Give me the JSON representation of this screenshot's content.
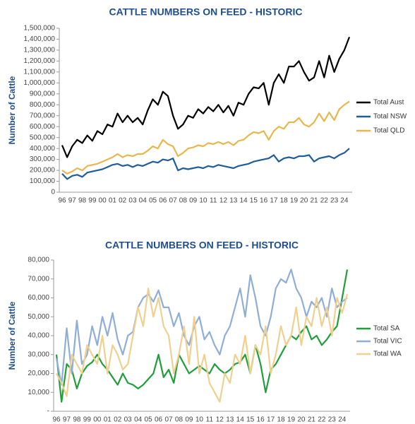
{
  "chart_data": [
    {
      "type": "line",
      "title": "CATTLE NUMBERS ON FEED - HISTORIC",
      "ylabel": "Number of Cattle",
      "categories": [
        "96",
        null,
        "97",
        null,
        "98",
        null,
        "99",
        null,
        "00",
        null,
        "01",
        null,
        "02",
        null,
        "03",
        null,
        "04",
        null,
        "05",
        null,
        "06",
        null,
        "07",
        null,
        "08",
        null,
        "09",
        null,
        "10",
        null,
        "11",
        null,
        "12",
        null,
        "13",
        null,
        "14",
        null,
        "15",
        null,
        "16",
        null,
        "17",
        null,
        "18",
        null,
        "19",
        null,
        "20",
        null,
        "21",
        null,
        "22",
        null,
        "23",
        null,
        "24",
        null
      ],
      "series": [
        {
          "name": "Total Aust",
          "color": "#000000",
          "values": [
            430000,
            320000,
            420000,
            480000,
            450000,
            520000,
            470000,
            560000,
            530000,
            620000,
            600000,
            720000,
            640000,
            700000,
            640000,
            680000,
            620000,
            750000,
            850000,
            800000,
            920000,
            880000,
            700000,
            580000,
            620000,
            700000,
            680000,
            760000,
            720000,
            780000,
            740000,
            800000,
            730000,
            790000,
            700000,
            820000,
            800000,
            900000,
            960000,
            950000,
            1000000,
            800000,
            1000000,
            1080000,
            1000000,
            1150000,
            1150000,
            1200000,
            1100000,
            1020000,
            1050000,
            1200000,
            1050000,
            1250000,
            1100000,
            1220000,
            1300000,
            1420000
          ]
        },
        {
          "name": "Total NSW",
          "color": "#1f5c99",
          "values": [
            170000,
            120000,
            150000,
            160000,
            140000,
            180000,
            190000,
            200000,
            210000,
            230000,
            250000,
            260000,
            240000,
            250000,
            230000,
            250000,
            240000,
            260000,
            280000,
            270000,
            300000,
            290000,
            310000,
            200000,
            220000,
            210000,
            220000,
            230000,
            220000,
            240000,
            230000,
            250000,
            240000,
            230000,
            220000,
            240000,
            250000,
            260000,
            280000,
            290000,
            300000,
            310000,
            340000,
            280000,
            310000,
            320000,
            310000,
            330000,
            330000,
            340000,
            280000,
            310000,
            320000,
            330000,
            310000,
            340000,
            360000,
            400000
          ]
        },
        {
          "name": "Total QLD",
          "color": "#e8b64c",
          "values": [
            200000,
            170000,
            190000,
            220000,
            200000,
            240000,
            250000,
            260000,
            280000,
            300000,
            320000,
            350000,
            320000,
            340000,
            330000,
            350000,
            350000,
            380000,
            420000,
            400000,
            480000,
            440000,
            420000,
            330000,
            360000,
            400000,
            410000,
            430000,
            420000,
            450000,
            440000,
            460000,
            440000,
            460000,
            430000,
            470000,
            480000,
            520000,
            550000,
            540000,
            560000,
            480000,
            560000,
            600000,
            580000,
            640000,
            640000,
            680000,
            620000,
            600000,
            640000,
            720000,
            650000,
            730000,
            660000,
            760000,
            800000,
            830000
          ]
        }
      ],
      "ylim": [
        0,
        1500000
      ],
      "yticks": [
        0,
        {
          "value": 100000,
          "label": "100,000"
        },
        {
          "value": 200000,
          "label": "200,000"
        },
        {
          "value": 300000,
          "label": "300,000"
        },
        {
          "value": 400000,
          "label": "400,000"
        },
        {
          "value": 500000,
          "label": "500,000"
        },
        {
          "value": 600000,
          "label": "600,000"
        },
        {
          "value": 700000,
          "label": "700,000"
        },
        {
          "value": 800000,
          "label": "800,000"
        },
        {
          "value": 900000,
          "label": "900,000"
        },
        {
          "value": 1000000,
          "label": "1,000,000"
        },
        {
          "value": 1100000,
          "label": "1,100,000"
        },
        {
          "value": 1200000,
          "label": "1,200,000"
        },
        {
          "value": 1300000,
          "label": "1,300,000"
        },
        {
          "value": 1400000,
          "label": "1,400,000"
        },
        {
          "value": 1500000,
          "label": "1,500,000"
        }
      ]
    },
    {
      "type": "line",
      "title": "CATTLE NUMBERS ON FEED - HISTORIC",
      "ylabel": "Number of Cattle",
      "categories": [
        "96",
        null,
        "97",
        null,
        "98",
        null,
        "99",
        null,
        "00",
        null,
        "01",
        null,
        "02",
        null,
        "03",
        null,
        "04",
        null,
        "05",
        null,
        "06",
        null,
        "07",
        null,
        "08",
        null,
        "09",
        null,
        "10",
        null,
        "11",
        null,
        "12",
        null,
        "13",
        null,
        "14",
        null,
        "15",
        null,
        "16",
        null,
        "17",
        null,
        "18",
        null,
        "19",
        null,
        "20",
        null,
        "21",
        null,
        "22",
        null,
        "23",
        null,
        "24",
        null
      ],
      "series": [
        {
          "name": "Total SA",
          "color": "#1f9e3a",
          "values": [
            30000,
            5000,
            25000,
            22000,
            12000,
            20000,
            24000,
            26000,
            30000,
            25000,
            22000,
            18000,
            14000,
            20000,
            15000,
            14000,
            12000,
            14000,
            17000,
            20000,
            30000,
            18000,
            22000,
            15000,
            30000,
            25000,
            20000,
            22000,
            24000,
            22000,
            20000,
            25000,
            22000,
            20000,
            22000,
            25000,
            26000,
            30000,
            20000,
            35000,
            25000,
            10000,
            22000,
            25000,
            30000,
            35000,
            40000,
            38000,
            42000,
            45000,
            38000,
            40000,
            35000,
            38000,
            42000,
            45000,
            60000,
            75000
          ]
        },
        {
          "name": "Total VIC",
          "color": "#8faed6",
          "values": [
            28000,
            14000,
            44000,
            20000,
            48000,
            25000,
            30000,
            45000,
            35000,
            50000,
            40000,
            52000,
            38000,
            30000,
            40000,
            42000,
            55000,
            60000,
            62000,
            58000,
            64000,
            55000,
            55000,
            45000,
            52000,
            40000,
            35000,
            45000,
            50000,
            38000,
            42000,
            35000,
            30000,
            40000,
            45000,
            55000,
            65000,
            50000,
            72000,
            60000,
            45000,
            40000,
            50000,
            65000,
            70000,
            68000,
            75000,
            65000,
            60000,
            50000,
            58000,
            55000,
            60000,
            50000,
            65000,
            55000,
            58000,
            60000
          ]
        },
        {
          "name": "Total WA",
          "color": "#efd08f",
          "values": [
            20000,
            15000,
            8000,
            30000,
            25000,
            20000,
            35000,
            30000,
            25000,
            40000,
            20000,
            35000,
            30000,
            22000,
            25000,
            40000,
            55000,
            45000,
            65000,
            50000,
            60000,
            45000,
            40000,
            20000,
            30000,
            45000,
            25000,
            50000,
            20000,
            30000,
            15000,
            10000,
            5000,
            20000,
            15000,
            30000,
            25000,
            40000,
            20000,
            35000,
            30000,
            45000,
            20000,
            30000,
            45000,
            35000,
            40000,
            55000,
            35000,
            50000,
            45000,
            60000,
            45000,
            55000,
            40000,
            60000,
            52000,
            62000
          ]
        }
      ],
      "ylim": [
        0,
        80000
      ],
      "yticks": [
        {
          "value": 0,
          "label": "-"
        },
        {
          "value": 10000,
          "label": "10,000"
        },
        {
          "value": 20000,
          "label": "20,000"
        },
        {
          "value": 30000,
          "label": "30,000"
        },
        {
          "value": 40000,
          "label": "40,000"
        },
        {
          "value": 50000,
          "label": "50,000"
        },
        {
          "value": 60000,
          "label": "60,000"
        },
        {
          "value": 70000,
          "label": "70,000"
        },
        {
          "value": 80000,
          "label": "80,000"
        }
      ]
    }
  ]
}
